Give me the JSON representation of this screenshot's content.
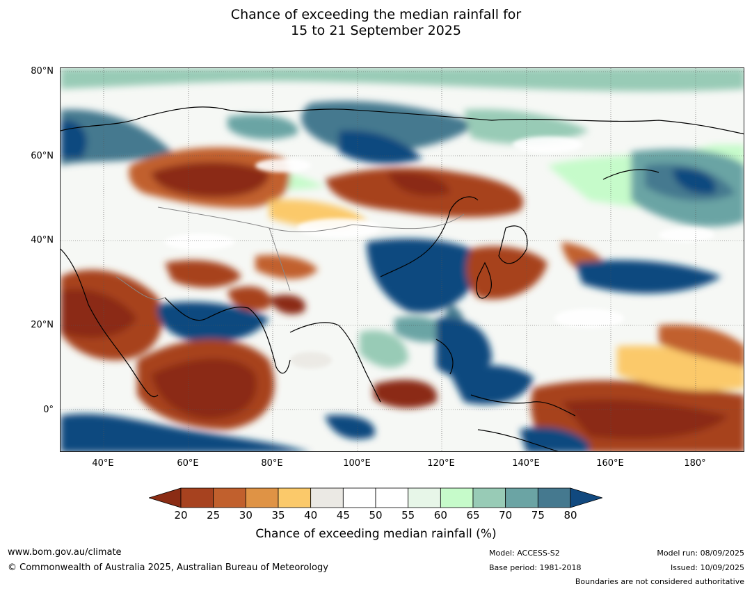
{
  "title": {
    "line1": "Chance of exceeding the median rainfall for",
    "line2": "15 to 21 September 2025"
  },
  "map": {
    "lat_labels": [
      "80°N",
      "60°N",
      "40°N",
      "20°N",
      "0°"
    ],
    "lon_labels": [
      "40°E",
      "60°E",
      "80°E",
      "100°E",
      "120°E",
      "140°E",
      "160°E",
      "180°"
    ]
  },
  "colorbar": {
    "ticks": [
      "20",
      "25",
      "30",
      "35",
      "40",
      "45",
      "50",
      "55",
      "60",
      "65",
      "70",
      "75",
      "80"
    ],
    "colors": [
      "#8b2c14",
      "#a7421f",
      "#c1602d",
      "#df9345",
      "#fbc96a",
      "#ebe9e4",
      "#ffffff",
      "#ffffff",
      "#e7f6e8",
      "#c6fbca",
      "#98cbb6",
      "#6ba4a4",
      "#45798f",
      "#11497f"
    ],
    "label": "Chance of exceeding median rainfall (%)"
  },
  "footer": {
    "website": "www.bom.gov.au/climate",
    "copyright": "© Commonwealth of Australia 2025, Australian Bureau of Meteorology",
    "model": "Model: ACCESS-S2",
    "base_period": "Base period: 1981-2018",
    "model_run": "Model run: 08/09/2025",
    "issued": "Issued: 10/09/2025",
    "disclaimer": "Boundaries are not considered authoritative"
  }
}
